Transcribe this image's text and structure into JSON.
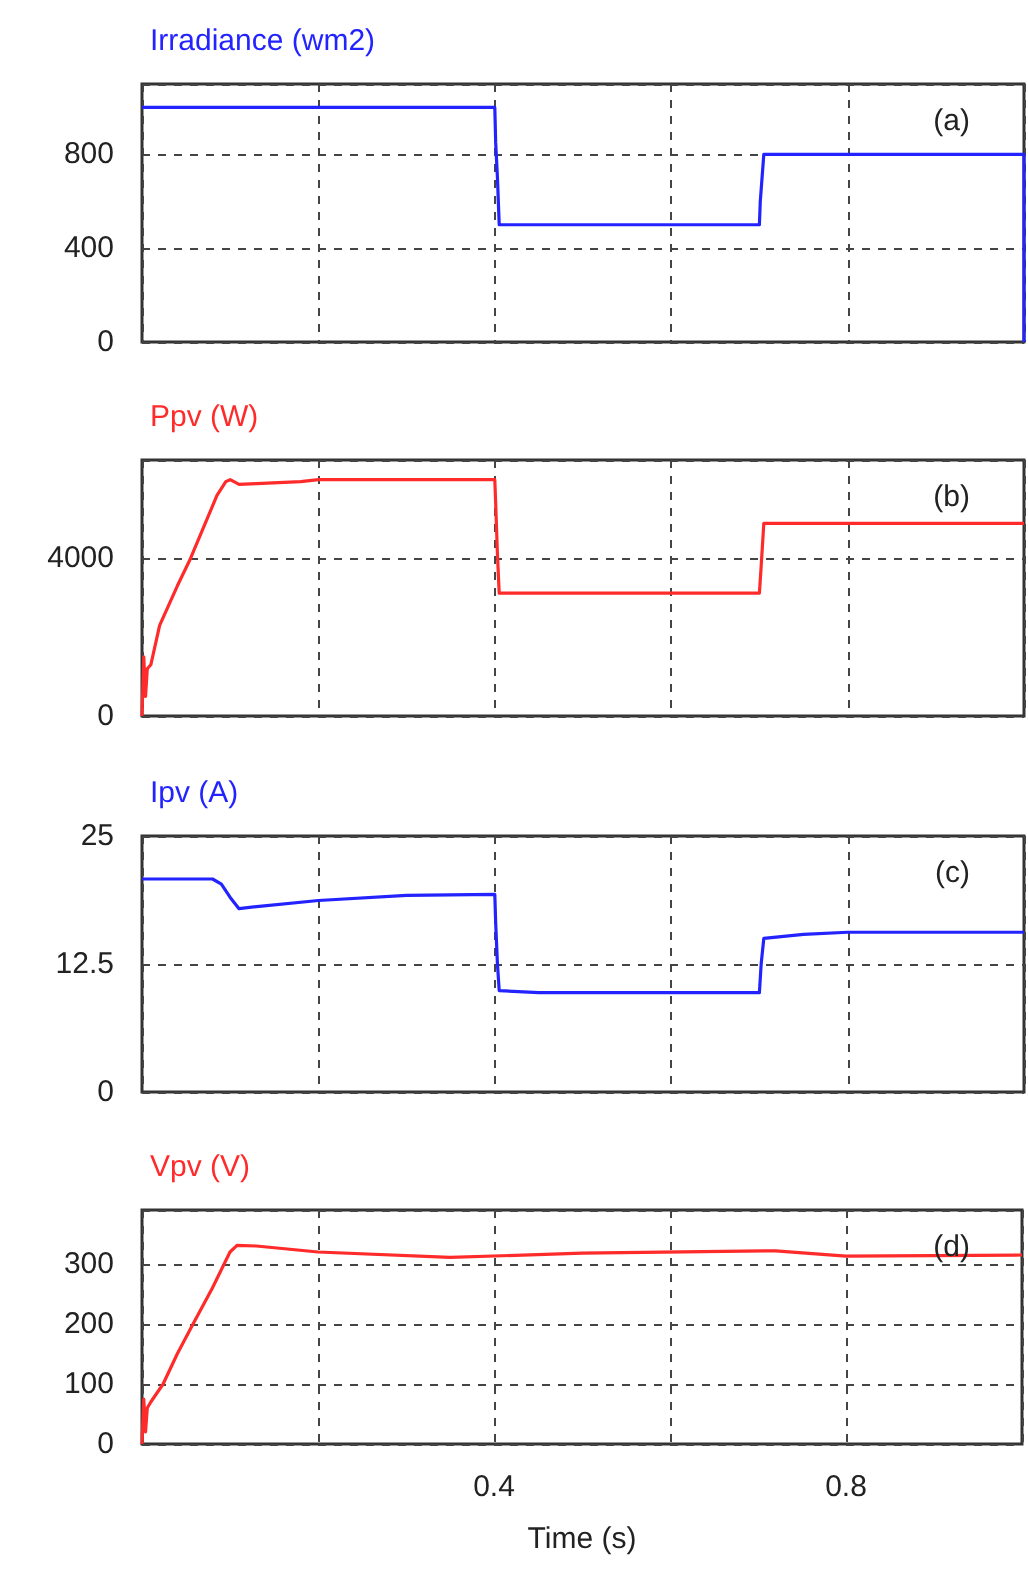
{
  "chart_data": [
    {
      "type": "line",
      "ylabel": "Irradiance (wm2)",
      "annotations": [
        "(a)"
      ],
      "color": "#2323ff",
      "x": [
        0,
        0.4,
        0.401,
        0.403,
        0.405,
        0.7,
        0.701,
        0.703,
        0.705,
        1.0,
        1.0
      ],
      "values": [
        1000,
        1000,
        850,
        700,
        500,
        500,
        600,
        700,
        800,
        800,
        0
      ],
      "xlim": [
        0,
        1
      ],
      "xticks": [
        {
          "value": 0,
          "label": null
        },
        {
          "value": 0.2,
          "label": null
        },
        {
          "value": 0.4,
          "label": null
        },
        {
          "value": 0.6,
          "label": null
        },
        {
          "value": 0.8,
          "label": null
        },
        {
          "value": 1.0,
          "label": null
        }
      ],
      "ylim": [
        0,
        1100
      ],
      "yticks": [
        0,
        400,
        800
      ],
      "grid": true,
      "tick_labels": "y"
    },
    {
      "type": "line",
      "ylabel": "Ppv (W)",
      "annotations": [
        "(b)"
      ],
      "color": "#ff2a2a",
      "x": [
        0,
        0.002,
        0.004,
        0.006,
        0.01,
        0.02,
        0.04,
        0.055,
        0.07,
        0.085,
        0.095,
        0.1,
        0.11,
        0.13,
        0.18,
        0.2,
        0.4,
        0.401,
        0.403,
        0.405,
        0.7,
        0.702,
        0.705,
        1.0
      ],
      "values": [
        0,
        1500,
        500,
        1200,
        1300,
        2300,
        3300,
        4000,
        4800,
        5600,
        5950,
        6000,
        5880,
        5900,
        5950,
        6000,
        6000,
        5400,
        4100,
        3120,
        3120,
        3800,
        4890,
        4890
      ],
      "xlim": [
        0,
        1
      ],
      "xticks": [
        {
          "value": 0,
          "label": null
        },
        {
          "value": 0.2,
          "label": null
        },
        {
          "value": 0.4,
          "label": null
        },
        {
          "value": 0.6,
          "label": null
        },
        {
          "value": 0.8,
          "label": null
        },
        {
          "value": 1.0,
          "label": null
        }
      ],
      "ylim": [
        0,
        6500
      ],
      "yticks": [
        0,
        4000
      ],
      "grid": true,
      "tick_labels": "y"
    },
    {
      "type": "line",
      "ylabel": "Ipv (A)",
      "annotations": [
        "(c)"
      ],
      "color": "#2323ff",
      "x": [
        0,
        0.08,
        0.09,
        0.1,
        0.11,
        0.13,
        0.2,
        0.3,
        0.4,
        0.401,
        0.403,
        0.405,
        0.45,
        0.7,
        0.702,
        0.705,
        0.75,
        0.8,
        1.0
      ],
      "values": [
        20.8,
        20.8,
        20.3,
        19.0,
        17.9,
        18.1,
        18.7,
        19.2,
        19.3,
        16.5,
        12.5,
        9.9,
        9.7,
        9.7,
        12.5,
        15.0,
        15.4,
        15.6,
        15.6
      ],
      "xlim": [
        0,
        1
      ],
      "xticks": [
        {
          "value": 0,
          "label": null
        },
        {
          "value": 0.2,
          "label": null
        },
        {
          "value": 0.4,
          "label": null
        },
        {
          "value": 0.6,
          "label": null
        },
        {
          "value": 0.8,
          "label": null
        },
        {
          "value": 1.0,
          "label": null
        }
      ],
      "ylim": [
        0,
        25
      ],
      "yticks": [
        0,
        12.5,
        25
      ],
      "grid": true,
      "tick_labels": "y"
    },
    {
      "type": "line",
      "ylabel": "Vpv (V)",
      "xlabel": "Time (s)",
      "annotations": [
        "(d)"
      ],
      "color": "#ff2a2a",
      "x": [
        0,
        0.002,
        0.004,
        0.006,
        0.01,
        0.024,
        0.04,
        0.058,
        0.08,
        0.1,
        0.108,
        0.13,
        0.2,
        0.35,
        0.5,
        0.72,
        0.8,
        1.0
      ],
      "values": [
        0,
        75,
        20,
        60,
        70,
        100,
        150,
        200,
        260,
        320,
        331,
        330,
        320,
        311,
        318,
        322,
        313,
        315
      ],
      "xlim": [
        0,
        1
      ],
      "xticks": [
        {
          "value": 0,
          "label": null
        },
        {
          "value": 0.2,
          "label": null
        },
        0.4,
        {
          "value": 0.6,
          "label": null
        },
        0.8,
        {
          "value": 1.0,
          "label": null
        }
      ],
      "ylim": [
        0,
        390
      ],
      "yticks": [
        0,
        100,
        200,
        300
      ],
      "grid": true
    }
  ]
}
